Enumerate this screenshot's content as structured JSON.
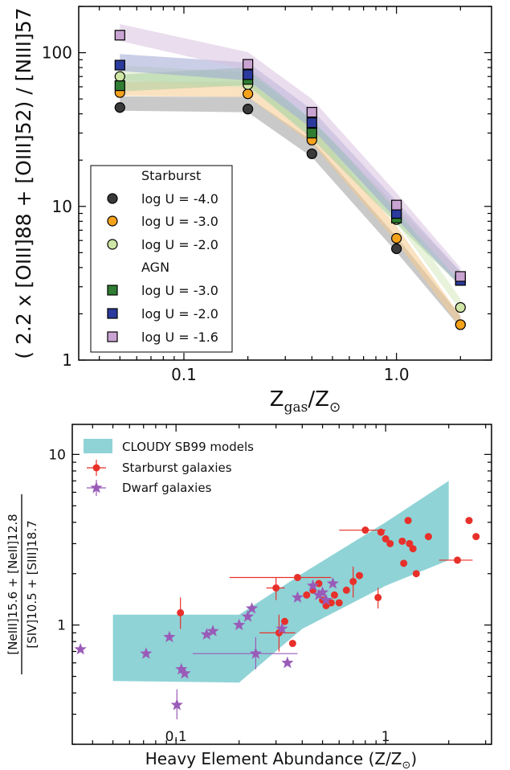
{
  "chart_data": [
    {
      "type": "scatter",
      "title": "",
      "xlabel_main": "Z",
      "xlabel_sub": "gas",
      "xlabel_sep": "/Z",
      "xlabel_sun": "⊙",
      "ylabel": "( 2.2 x [OIII]88 + [OIII]52) / [NIII]57",
      "xscale": "log",
      "yscale": "log",
      "xlim": [
        0.032,
        2.8
      ],
      "ylim": [
        1,
        200
      ],
      "xticks": [
        {
          "v": 0.1,
          "label": "0.1"
        },
        {
          "v": 1.0,
          "label": "1.0"
        }
      ],
      "yticks": [
        {
          "v": 1,
          "label": "1"
        },
        {
          "v": 10,
          "label": "10"
        },
        {
          "v": 100,
          "label": "100"
        }
      ],
      "x": [
        0.05,
        0.2,
        0.4,
        1.0,
        2.0
      ],
      "legend_placement": "lower-left",
      "legend_groups": [
        "Starburst",
        "AGN"
      ],
      "series": [
        {
          "name": "log U = -4.0",
          "group": "Starburst",
          "marker": "circle",
          "color": "#3a3a3a",
          "band": "#9c9c9c",
          "y": [
            44,
            43,
            22,
            5.3,
            1.7
          ]
        },
        {
          "name": "log U = -3.0",
          "group": "Starburst",
          "marker": "circle",
          "color": "#f5a21b",
          "band": "#f5c98a",
          "y": [
            55,
            54,
            27,
            6.2,
            1.7
          ]
        },
        {
          "name": "log U = -2.0",
          "group": "Starburst",
          "marker": "circle",
          "color": "#cfe6a6",
          "band": "#d7eabf",
          "y": [
            70,
            62,
            30,
            8.2,
            2.2
          ]
        },
        {
          "name": "log U = -3.0",
          "group": "AGN",
          "marker": "square",
          "color": "#2f7d32",
          "band": "#a9cfa0",
          "y": [
            61,
            67,
            30,
            8.4,
            3.3
          ]
        },
        {
          "name": "log U = -2.0",
          "group": "AGN",
          "marker": "square",
          "color": "#2b3a9c",
          "band": "#9ea6d4",
          "y": [
            83,
            72,
            35,
            9.0,
            3.3
          ]
        },
        {
          "name": "log U = -1.6",
          "group": "AGN",
          "marker": "square",
          "color": "#c9a3d1",
          "band": "#d8c1e0",
          "y": [
            130,
            84,
            41,
            10.2,
            3.5
          ]
        }
      ]
    },
    {
      "type": "scatter",
      "title": "",
      "xlabel": "Heavy Element Abundance (Z/Z",
      "xlabel_sun": "⊙",
      "xlabel_end": ")",
      "ylabel_num": "[NeIII]15.6 + [NeII]12.8",
      "ylabel_den": "[SIV]10.5 + [SIII]18.7",
      "xscale": "log",
      "yscale": "log",
      "xlim": [
        0.032,
        3.2
      ],
      "ylim": [
        0.2,
        15
      ],
      "xticks": [
        {
          "v": 0.1,
          "label": "0.1"
        },
        {
          "v": 1,
          "label": "1"
        }
      ],
      "yticks": [
        {
          "v": 1,
          "label": "1"
        },
        {
          "v": 10,
          "label": "10"
        }
      ],
      "legend_placement": "top-left",
      "band_color": "#8fd3d6",
      "model_band": {
        "name": "CLOUDY SB99 models",
        "upper": [
          [
            0.05,
            1.15
          ],
          [
            0.2,
            1.15
          ],
          [
            0.4,
            2.0
          ],
          [
            1.0,
            4.0
          ],
          [
            2.0,
            7.0
          ]
        ],
        "lower": [
          [
            0.05,
            0.47
          ],
          [
            0.2,
            0.46
          ],
          [
            0.4,
            0.95
          ],
          [
            1.0,
            1.7
          ],
          [
            2.0,
            2.4
          ]
        ]
      },
      "series": [
        {
          "name": "Starburst galaxies",
          "marker": "circle",
          "color": "#e8302a",
          "points": [
            {
              "x": 0.105,
              "y": 1.18,
              "ylo": 0.95,
              "yhi": 1.45
            },
            {
              "x": 0.3,
              "y": 1.65,
              "ylo": 1.4,
              "yhi": 1.9,
              "xlo": 0.27,
              "xhi": 0.33
            },
            {
              "x": 0.31,
              "y": 0.9,
              "ylo": 0.7,
              "yhi": 1.15,
              "xlo": 0.25,
              "xhi": 0.37
            },
            {
              "x": 0.33,
              "y": 1.05
            },
            {
              "x": 0.36,
              "y": 0.78
            },
            {
              "x": 0.38,
              "y": 1.9,
              "xlo": 0.18,
              "xhi": 0.55
            },
            {
              "x": 0.42,
              "y": 1.5
            },
            {
              "x": 0.45,
              "y": 1.6
            },
            {
              "x": 0.48,
              "y": 1.75
            },
            {
              "x": 0.5,
              "y": 1.4
            },
            {
              "x": 0.52,
              "y": 1.3
            },
            {
              "x": 0.55,
              "y": 1.35
            },
            {
              "x": 0.57,
              "y": 1.5
            },
            {
              "x": 0.6,
              "y": 1.35
            },
            {
              "x": 0.65,
              "y": 1.6
            },
            {
              "x": 0.7,
              "y": 1.8,
              "ylo": 1.45,
              "yhi": 2.2
            },
            {
              "x": 0.75,
              "y": 1.95
            },
            {
              "x": 0.8,
              "y": 3.6,
              "xlo": 0.6,
              "xhi": 1.0
            },
            {
              "x": 0.92,
              "y": 1.45,
              "ylo": 1.25,
              "yhi": 1.65
            },
            {
              "x": 0.95,
              "y": 3.5
            },
            {
              "x": 1.0,
              "y": 3.2
            },
            {
              "x": 1.05,
              "y": 3.0
            },
            {
              "x": 1.2,
              "y": 3.1
            },
            {
              "x": 1.22,
              "y": 2.3
            },
            {
              "x": 1.28,
              "y": 4.1
            },
            {
              "x": 1.3,
              "y": 3.0
            },
            {
              "x": 1.35,
              "y": 2.8
            },
            {
              "x": 1.4,
              "y": 2.0
            },
            {
              "x": 1.6,
              "y": 3.3
            },
            {
              "x": 2.2,
              "y": 2.4,
              "xlo": 1.8,
              "xhi": 2.6
            },
            {
              "x": 2.5,
              "y": 4.1
            },
            {
              "x": 2.7,
              "y": 3.3
            }
          ]
        },
        {
          "name": "Dwarf galaxies",
          "marker": "star",
          "color": "#9a5bb8",
          "points": [
            {
              "x": 0.035,
              "y": 0.72
            },
            {
              "x": 0.072,
              "y": 0.68
            },
            {
              "x": 0.093,
              "y": 0.85
            },
            {
              "x": 0.101,
              "y": 0.34,
              "ylo": 0.28,
              "yhi": 0.42
            },
            {
              "x": 0.106,
              "y": 0.55
            },
            {
              "x": 0.11,
              "y": 0.52
            },
            {
              "x": 0.14,
              "y": 0.88
            },
            {
              "x": 0.15,
              "y": 0.92
            },
            {
              "x": 0.2,
              "y": 1.0
            },
            {
              "x": 0.22,
              "y": 1.12
            },
            {
              "x": 0.23,
              "y": 1.25
            },
            {
              "x": 0.24,
              "y": 0.68,
              "xlo": 0.12,
              "xhi": 0.38,
              "ylo": 0.55,
              "yhi": 0.85
            },
            {
              "x": 0.32,
              "y": 0.95
            },
            {
              "x": 0.34,
              "y": 0.6
            },
            {
              "x": 0.38,
              "y": 1.45
            },
            {
              "x": 0.45,
              "y": 1.7
            },
            {
              "x": 0.48,
              "y": 1.5
            },
            {
              "x": 0.5,
              "y": 1.55
            },
            {
              "x": 0.52,
              "y": 1.4
            },
            {
              "x": 0.56,
              "y": 1.75
            }
          ]
        }
      ]
    }
  ]
}
